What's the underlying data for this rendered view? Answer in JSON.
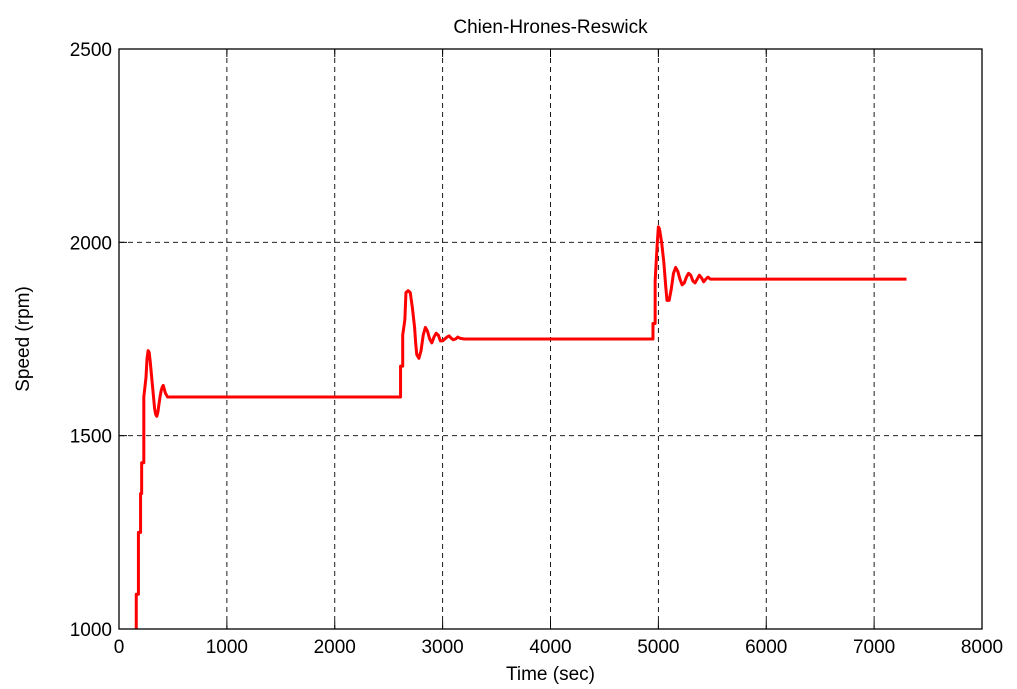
{
  "chart_data": {
    "type": "line",
    "title": "Chien-Hrones-Reswick",
    "xlabel": "Time (sec)",
    "ylabel": "Speed (rpm)",
    "xlim": [
      0,
      8000
    ],
    "ylim": [
      1000,
      2500
    ],
    "xticks": [
      0,
      1000,
      2000,
      3000,
      4000,
      5000,
      6000,
      7000,
      8000
    ],
    "yticks": [
      1000,
      1500,
      2000,
      2500
    ],
    "xtick_labels": [
      "0",
      "1000",
      "2000",
      "3000",
      "4000",
      "5000",
      "6000",
      "7000",
      "8000"
    ],
    "ytick_labels": [
      "1000",
      "1500",
      "2000",
      "2500"
    ],
    "grid": true,
    "line_color": "#ff0000",
    "series": [
      {
        "x": [
          160,
          160,
          180,
          180,
          200,
          200,
          210,
          210,
          230,
          230,
          250,
          260,
          270,
          280,
          290,
          300,
          310,
          320,
          330,
          340,
          350,
          360,
          370,
          380,
          390,
          400,
          410,
          420,
          430,
          440,
          450,
          460,
          480,
          500,
          700,
          1000,
          1500,
          2000,
          2500,
          2610,
          2610,
          2630,
          2630,
          2650,
          2660,
          2680,
          2700,
          2720,
          2740,
          2750,
          2760,
          2780,
          2800,
          2820,
          2840,
          2860,
          2880,
          2900,
          2920,
          2940,
          2960,
          2980,
          3000,
          3020,
          3040,
          3060,
          3080,
          3100,
          3120,
          3140,
          3160,
          3200,
          3500,
          4000,
          4500,
          4950,
          4950,
          4970,
          4970,
          4990,
          5000,
          5010,
          5030,
          5050,
          5070,
          5080,
          5100,
          5120,
          5140,
          5160,
          5180,
          5200,
          5220,
          5240,
          5260,
          5280,
          5300,
          5320,
          5340,
          5360,
          5380,
          5400,
          5420,
          5440,
          5460,
          5480,
          5500,
          5600,
          6000,
          6500,
          7000,
          7300
        ],
        "y": [
          1000,
          1090,
          1090,
          1250,
          1250,
          1350,
          1350,
          1430,
          1430,
          1600,
          1650,
          1700,
          1720,
          1715,
          1690,
          1660,
          1630,
          1600,
          1570,
          1555,
          1550,
          1560,
          1580,
          1600,
          1615,
          1625,
          1630,
          1620,
          1610,
          1605,
          1600,
          1600,
          1600,
          1600,
          1600,
          1600,
          1600,
          1600,
          1600,
          1600,
          1680,
          1680,
          1760,
          1800,
          1870,
          1875,
          1870,
          1830,
          1780,
          1740,
          1710,
          1700,
          1720,
          1760,
          1780,
          1770,
          1750,
          1740,
          1755,
          1765,
          1760,
          1745,
          1745,
          1750,
          1755,
          1758,
          1752,
          1748,
          1750,
          1755,
          1752,
          1750,
          1750,
          1750,
          1750,
          1750,
          1790,
          1790,
          1900,
          2000,
          2040,
          2035,
          2000,
          1950,
          1880,
          1850,
          1850,
          1880,
          1920,
          1935,
          1925,
          1905,
          1890,
          1895,
          1910,
          1920,
          1915,
          1900,
          1895,
          1905,
          1915,
          1908,
          1898,
          1905,
          1910,
          1905,
          1905,
          1905,
          1905,
          1905,
          1905,
          1905
        ]
      }
    ]
  }
}
